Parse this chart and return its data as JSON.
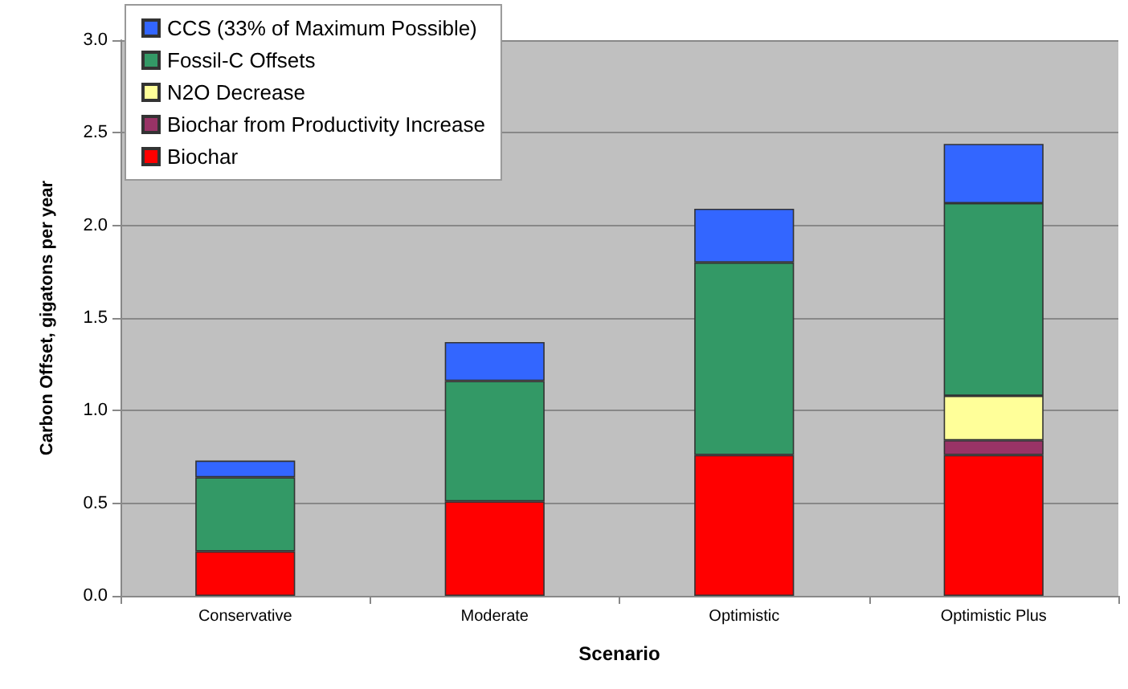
{
  "chart_data": {
    "type": "bar",
    "stacked": true,
    "xlabel": "Scenario",
    "ylabel": "Carbon Offset, gigatons per year",
    "categories": [
      "Conservative",
      "Moderate",
      "Optimistic",
      "Optimistic Plus"
    ],
    "series": [
      {
        "name": "Biochar",
        "color": "#ff0000",
        "values": [
          0.24,
          0.51,
          0.76,
          0.76
        ]
      },
      {
        "name": "Biochar from Productivity Increase",
        "color": "#993366",
        "values": [
          null,
          null,
          null,
          0.08
        ]
      },
      {
        "name": "N2O Decrease",
        "color": "#ffff99",
        "values": [
          null,
          null,
          null,
          0.24
        ]
      },
      {
        "name": "Fossil-C Offsets",
        "color": "#339966",
        "values": [
          0.4,
          0.65,
          1.04,
          1.04
        ]
      },
      {
        "name": "CCS (33% of Maximum Possible)",
        "color": "#3366ff",
        "values": [
          0.09,
          0.21,
          0.29,
          0.32
        ]
      }
    ],
    "ylim": [
      0,
      3.0
    ],
    "yticks": [
      {
        "value": 0,
        "label": "0.0"
      },
      {
        "value": 0.5,
        "label": "0.5"
      },
      {
        "value": 1,
        "label": "1.0"
      },
      {
        "value": 1.5,
        "label": "1.5"
      },
      {
        "value": 2,
        "label": "2.0"
      },
      {
        "value": 2.5,
        "label": "2.5"
      },
      {
        "value": 3,
        "label": "3.0"
      }
    ],
    "grid": "y",
    "legend": "top left"
  }
}
